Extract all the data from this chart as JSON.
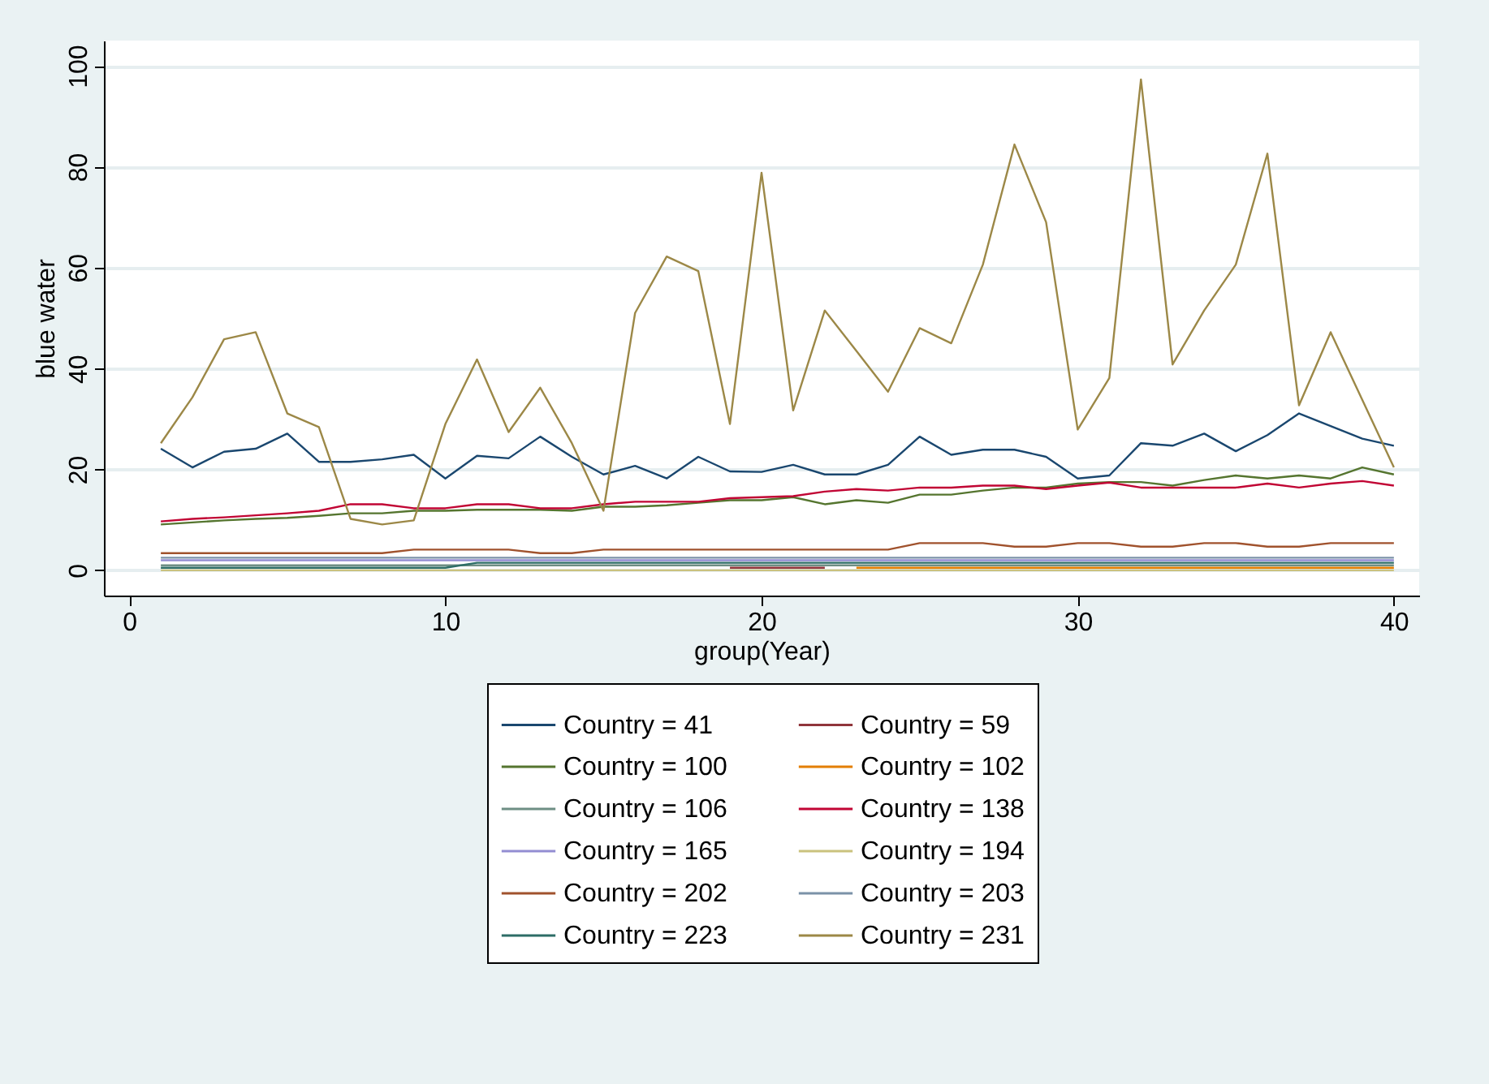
{
  "chart_data": {
    "type": "line",
    "xlabel": "group(Year)",
    "ylabel": "blue water",
    "x": [
      1,
      2,
      3,
      4,
      5,
      6,
      7,
      8,
      9,
      10,
      11,
      12,
      13,
      14,
      15,
      16,
      17,
      18,
      19,
      20,
      21,
      22,
      23,
      24,
      25,
      26,
      27,
      28,
      29,
      30,
      31,
      32,
      33,
      34,
      35,
      36,
      37,
      38,
      39,
      40
    ],
    "series": [
      {
        "name": "Country = 41",
        "color": "#1a476f",
        "values": [
          24.1,
          20.4,
          23.5,
          24.1,
          27.1,
          21.5,
          21.5,
          22,
          22.9,
          18.2,
          22.7,
          22.2,
          26.5,
          22.5,
          19,
          20.7,
          18.2,
          22.5,
          19.6,
          19.5,
          20.9,
          19,
          19,
          20.9,
          26.5,
          22.9,
          23.9,
          23.9,
          22.5,
          18.2,
          18.8,
          25.2,
          24.7,
          27.1,
          23.6,
          26.8,
          31.1,
          28.6,
          26.1,
          24.7
        ]
      },
      {
        "name": "Country = 59",
        "color": "#90353b",
        "values": [
          null,
          null,
          null,
          null,
          null,
          null,
          null,
          null,
          null,
          null,
          null,
          null,
          null,
          null,
          null,
          null,
          null,
          null,
          0.5,
          0.5,
          0.5,
          0.5,
          null,
          null,
          null,
          null,
          null,
          null,
          null,
          null,
          null,
          null,
          null,
          null,
          null,
          null,
          null,
          null,
          null,
          null
        ]
      },
      {
        "name": "Country = 100",
        "color": "#55752f",
        "values": [
          9.1,
          9.5,
          9.9,
          10.2,
          10.4,
          10.8,
          11.3,
          11.3,
          11.8,
          11.8,
          12,
          12,
          12,
          11.8,
          12.6,
          12.6,
          12.9,
          13.4,
          13.9,
          13.9,
          14.5,
          13.1,
          13.9,
          13.4,
          15,
          15,
          15.8,
          16.4,
          16.4,
          17.2,
          17.5,
          17.5,
          16.8,
          17.9,
          18.8,
          18.2,
          18.8,
          18.2,
          20.4,
          19
        ]
      },
      {
        "name": "Country = 102",
        "color": "#e37e00",
        "values": [
          null,
          null,
          null,
          null,
          null,
          null,
          null,
          null,
          null,
          null,
          null,
          null,
          null,
          null,
          null,
          null,
          null,
          null,
          null,
          null,
          null,
          null,
          0.5,
          0.5,
          0.5,
          0.5,
          0.5,
          0.5,
          0.5,
          0.5,
          0.5,
          0.5,
          0.5,
          0.5,
          0.5,
          0.5,
          0.5,
          0.5,
          0.5,
          0.5
        ]
      },
      {
        "name": "Country = 106",
        "color": "#6e8e84",
        "values": [
          1,
          1,
          1,
          1,
          1,
          1,
          1,
          1,
          1,
          1,
          1,
          1,
          1,
          1,
          1,
          1,
          1,
          1,
          1,
          1,
          1,
          1,
          1,
          1,
          1,
          1,
          1,
          1,
          1,
          1,
          1,
          1,
          1,
          1,
          1,
          1,
          1,
          1,
          1,
          1
        ]
      },
      {
        "name": "Country = 138",
        "color": "#c10534",
        "values": [
          9.7,
          10.2,
          10.5,
          10.9,
          11.3,
          11.8,
          13.1,
          13.1,
          12.3,
          12.3,
          13.1,
          13.1,
          12.3,
          12.3,
          13.1,
          13.6,
          13.6,
          13.6,
          14.3,
          14.5,
          14.7,
          15.6,
          16.1,
          15.8,
          16.4,
          16.4,
          16.8,
          16.8,
          16.1,
          16.8,
          17.4,
          16.4,
          16.4,
          16.4,
          16.4,
          17.2,
          16.4,
          17.2,
          17.7,
          16.8
        ]
      },
      {
        "name": "Country = 165",
        "color": "#938dd2",
        "values": [
          2,
          2,
          2,
          2,
          2,
          2,
          2,
          2,
          2,
          2,
          2,
          2,
          2,
          2,
          2,
          2,
          2,
          2,
          2,
          2,
          2,
          2,
          2,
          2,
          2,
          2,
          2,
          2,
          2,
          2,
          2,
          2,
          2,
          2,
          2,
          2,
          2,
          2,
          2,
          2
        ]
      },
      {
        "name": "Country = 194",
        "color": "#cac27e",
        "values": [
          0,
          0,
          0,
          0,
          0,
          0,
          0,
          0,
          0,
          0,
          0,
          0,
          0,
          0,
          0,
          0,
          0,
          0,
          0,
          0,
          0,
          0,
          0,
          0,
          0,
          0,
          0,
          0,
          0,
          0,
          0,
          0,
          0,
          0,
          0,
          0,
          0,
          0,
          0,
          0
        ]
      },
      {
        "name": "Country = 202",
        "color": "#a0522d",
        "values": [
          3.4,
          3.4,
          3.4,
          3.4,
          3.4,
          3.4,
          3.4,
          3.4,
          4.1,
          4.1,
          4.1,
          4.1,
          3.4,
          3.4,
          4.1,
          4.1,
          4.1,
          4.1,
          4.1,
          4.1,
          4.1,
          4.1,
          4.1,
          4.1,
          5.4,
          5.4,
          5.4,
          4.7,
          4.7,
          5.4,
          5.4,
          4.7,
          4.7,
          5.4,
          5.4,
          4.7,
          4.7,
          5.4,
          5.4,
          5.4
        ]
      },
      {
        "name": "Country = 203",
        "color": "#7b92a8",
        "values": [
          2.5,
          2.5,
          2.5,
          2.5,
          2.5,
          2.5,
          2.5,
          2.5,
          2.5,
          2.5,
          2.5,
          2.5,
          2.5,
          2.5,
          2.5,
          2.5,
          2.5,
          2.5,
          2.5,
          2.5,
          2.5,
          2.5,
          2.5,
          2.5,
          2.5,
          2.5,
          2.5,
          2.5,
          2.5,
          2.5,
          2.5,
          2.5,
          2.5,
          2.5,
          2.5,
          2.5,
          2.5,
          2.5,
          2.5,
          2.5
        ]
      },
      {
        "name": "Country = 223",
        "color": "#2d6d66",
        "values": [
          0.5,
          0.5,
          0.5,
          0.5,
          0.5,
          0.5,
          0.5,
          0.5,
          0.5,
          0.5,
          1.5,
          1.5,
          1.5,
          1.5,
          1.5,
          1.5,
          1.5,
          1.5,
          1.5,
          1.5,
          1.5,
          1.5,
          1.5,
          1.5,
          1.5,
          1.5,
          1.5,
          1.5,
          1.5,
          1.5,
          1.5,
          1.5,
          1.5,
          1.5,
          1.5,
          1.5,
          1.5,
          1.5,
          1.5,
          1.5
        ]
      },
      {
        "name": "Country = 231",
        "color": "#9c8847",
        "values": [
          25.2,
          34.3,
          45.8,
          47.2,
          31.1,
          28.4,
          10.2,
          9.1,
          9.9,
          29,
          41.8,
          27.4,
          36.2,
          25.2,
          11.8,
          51,
          62.2,
          59.3,
          29,
          78.8,
          31.7,
          51.5,
          43.5,
          35.4,
          48,
          45,
          60.6,
          84.4,
          69,
          27.9,
          38.1,
          97.3,
          40.8,
          51.5,
          60.6,
          82.6,
          32.7,
          47.2,
          33.8,
          20.4
        ]
      }
    ],
    "xlim": [
      -0.8,
      40.8
    ],
    "xticks": [
      0,
      10,
      20,
      30,
      40
    ],
    "ylim": [
      -5,
      105
    ],
    "yticks": [
      0,
      20,
      40,
      60,
      80,
      100
    ],
    "grid": "y",
    "legend": "bottom",
    "line_style": "solid",
    "marker": "none"
  }
}
